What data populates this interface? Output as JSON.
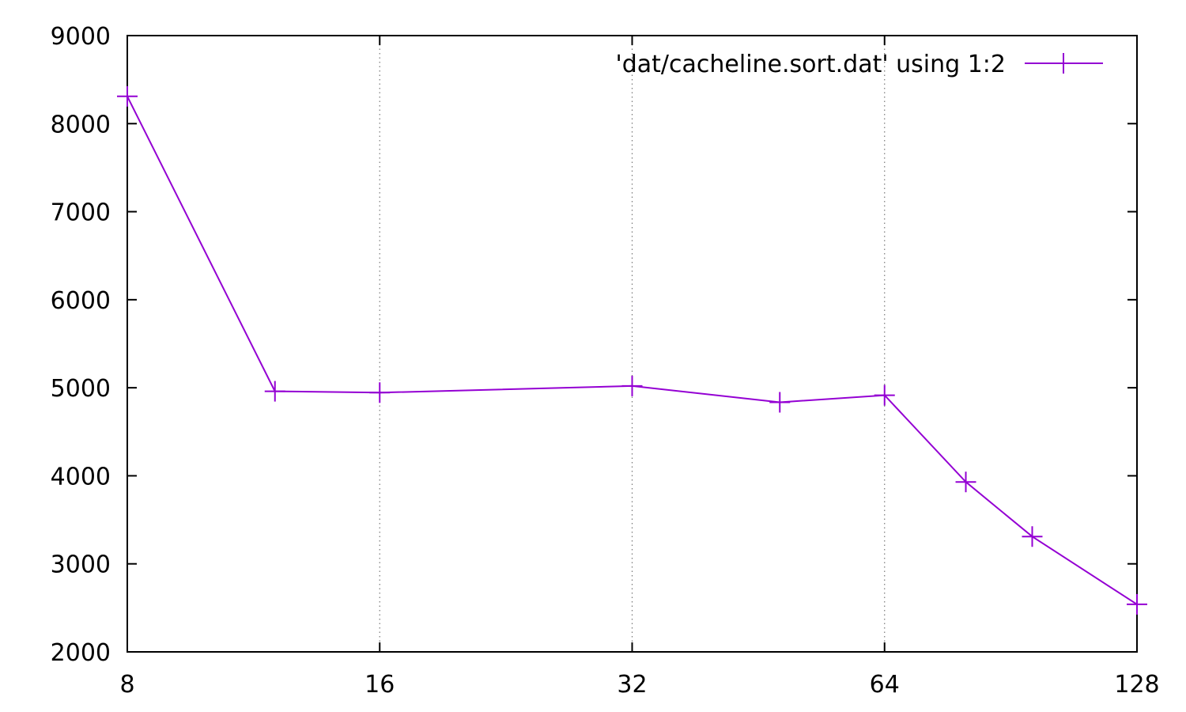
{
  "chart_data": {
    "type": "line",
    "title": "",
    "xlabel": "",
    "ylabel": "",
    "x_scale": "log2",
    "xlim": [
      8,
      128
    ],
    "ylim": [
      2000,
      9000
    ],
    "x_ticks": [
      8,
      16,
      32,
      64,
      128
    ],
    "x_tick_labels": [
      "8",
      "16",
      "32",
      "64",
      "128"
    ],
    "y_ticks": [
      2000,
      3000,
      4000,
      5000,
      6000,
      7000,
      8000,
      9000
    ],
    "y_tick_labels": [
      "2000",
      "3000",
      "4000",
      "5000",
      "6000",
      "7000",
      "8000",
      "9000"
    ],
    "grid": "vertical dotted at x ticks",
    "legend_position": "top-right",
    "series": [
      {
        "name": "'dat/cacheline.sort.dat' using 1:2",
        "color": "#9400d3",
        "marker": "plus",
        "x": [
          8,
          12,
          16,
          32,
          48,
          64,
          80,
          96,
          128
        ],
        "y": [
          8310,
          4960,
          4945,
          5020,
          4835,
          4915,
          3930,
          3310,
          2540
        ]
      }
    ]
  }
}
